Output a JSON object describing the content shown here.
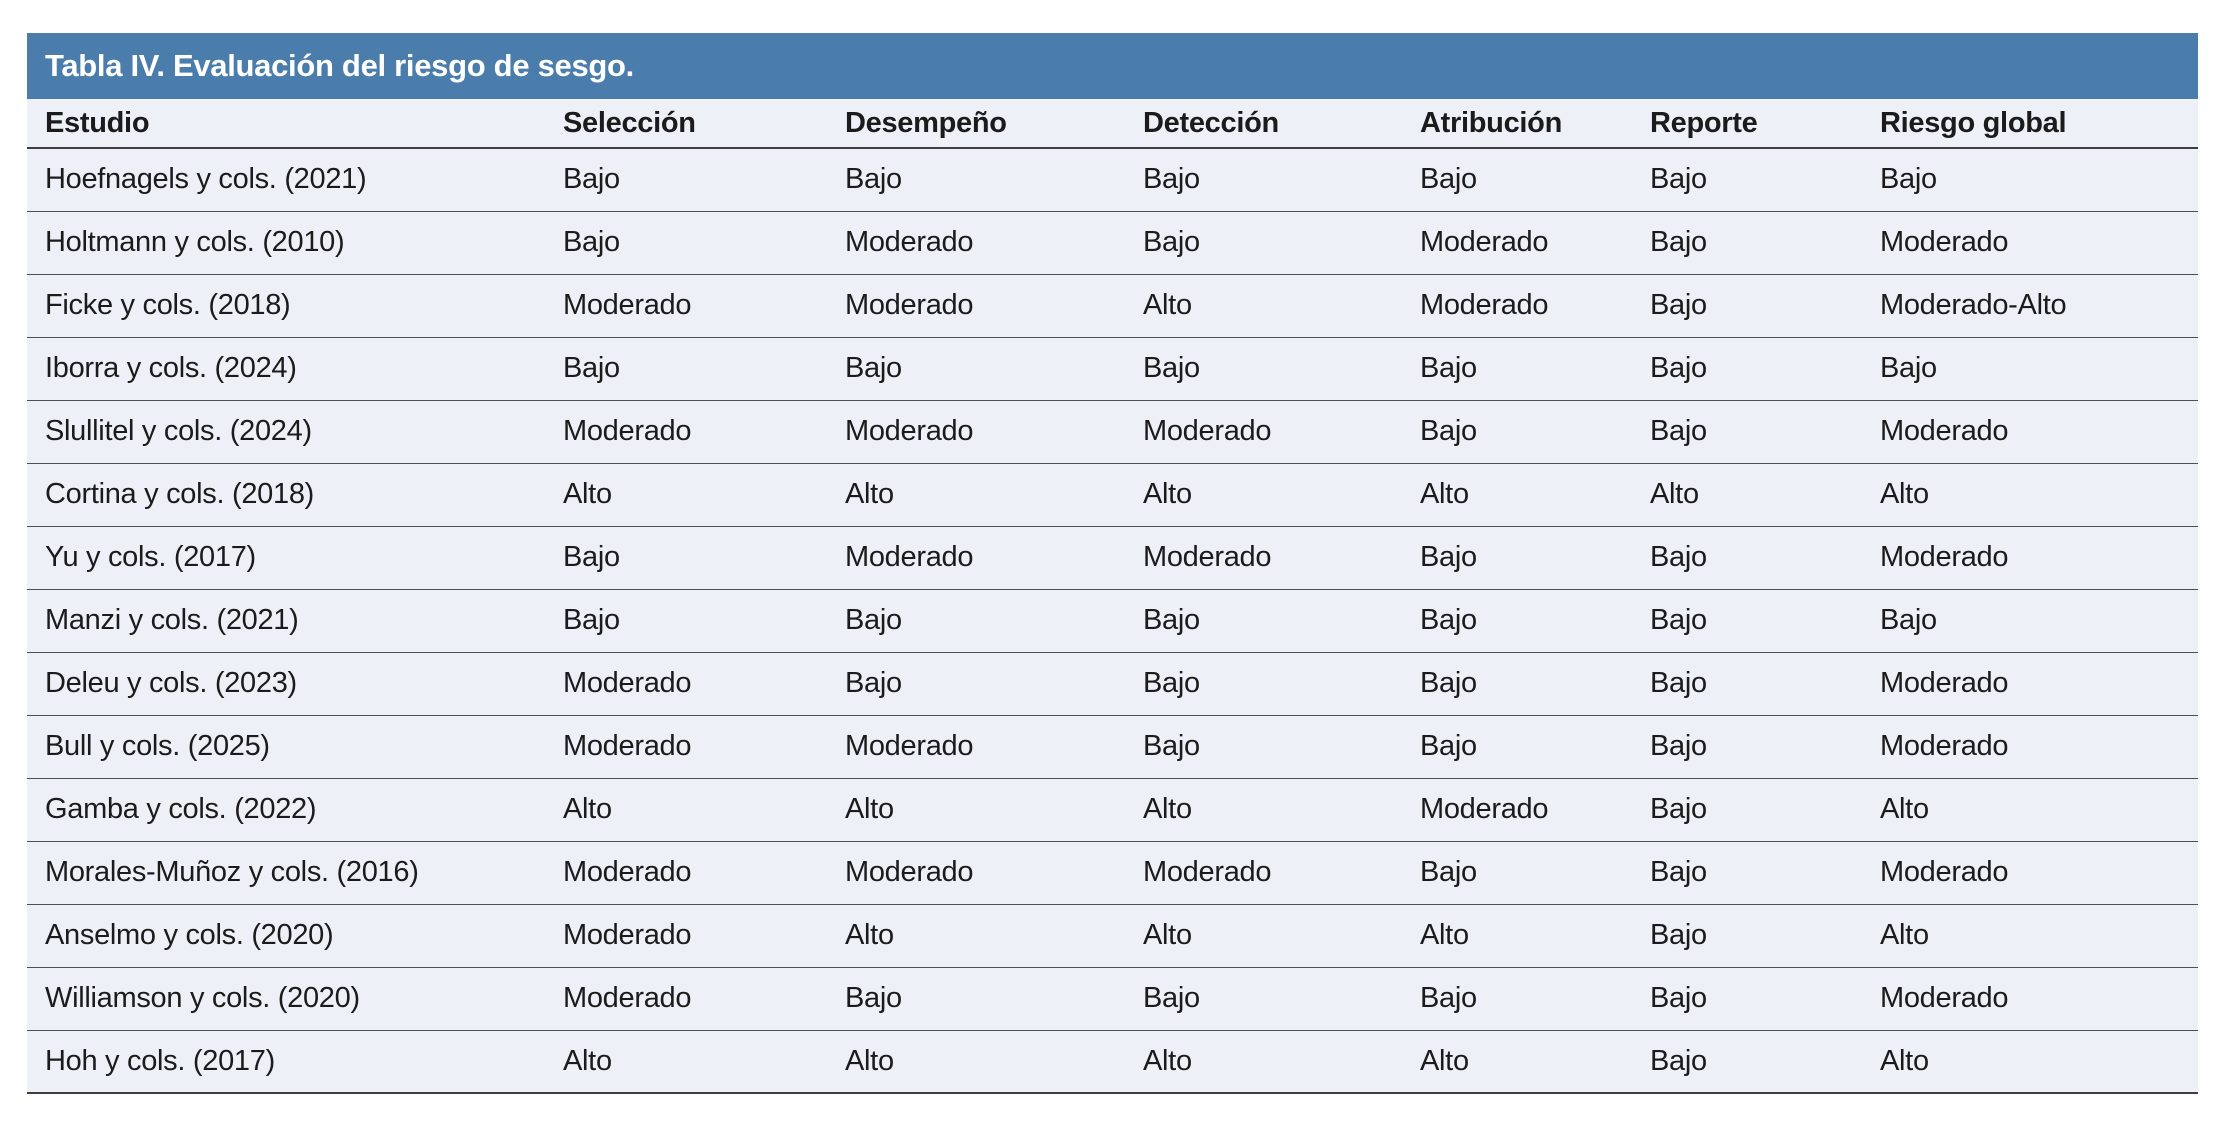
{
  "table": {
    "title": "Tabla IV. Evaluación del riesgo de sesgo.",
    "title_bg_color": "#4a7dab",
    "row_bg_color": "#edf0f7",
    "columns": [
      "Estudio",
      "Selección",
      "Desempeño",
      "Detección",
      "Atribución",
      "Reporte",
      "Riesgo global"
    ],
    "rows": [
      [
        "Hoefnagels y cols. (2021)",
        "Bajo",
        "Bajo",
        "Bajo",
        "Bajo",
        "Bajo",
        "Bajo"
      ],
      [
        "Holtmann y cols. (2010)",
        "Bajo",
        "Moderado",
        "Bajo",
        "Moderado",
        "Bajo",
        "Moderado"
      ],
      [
        "Ficke y cols. (2018)",
        "Moderado",
        "Moderado",
        "Alto",
        "Moderado",
        "Bajo",
        "Moderado-Alto"
      ],
      [
        "Iborra y cols. (2024)",
        "Bajo",
        "Bajo",
        "Bajo",
        "Bajo",
        "Bajo",
        "Bajo"
      ],
      [
        "Slullitel y cols. (2024)",
        "Moderado",
        "Moderado",
        "Moderado",
        "Bajo",
        "Bajo",
        "Moderado"
      ],
      [
        "Cortina y cols. (2018)",
        "Alto",
        "Alto",
        "Alto",
        "Alto",
        "Alto",
        "Alto"
      ],
      [
        "Yu y cols. (2017)",
        "Bajo",
        "Moderado",
        "Moderado",
        "Bajo",
        "Bajo",
        "Moderado"
      ],
      [
        "Manzi y cols. (2021)",
        "Bajo",
        "Bajo",
        "Bajo",
        "Bajo",
        "Bajo",
        "Bajo"
      ],
      [
        "Deleu y cols. (2023)",
        "Moderado",
        "Bajo",
        "Bajo",
        "Bajo",
        "Bajo",
        "Moderado"
      ],
      [
        "Bull y cols. (2025)",
        "Moderado",
        "Moderado",
        "Bajo",
        "Bajo",
        "Bajo",
        "Moderado"
      ],
      [
        "Gamba y cols. (2022)",
        "Alto",
        "Alto",
        "Alto",
        "Moderado",
        "Bajo",
        "Alto"
      ],
      [
        "Morales-Muñoz y cols. (2016)",
        "Moderado",
        "Moderado",
        "Moderado",
        "Bajo",
        "Bajo",
        "Moderado"
      ],
      [
        "Anselmo y cols. (2020)",
        "Moderado",
        "Alto",
        "Alto",
        "Alto",
        "Bajo",
        "Alto"
      ],
      [
        "Williamson y cols. (2020)",
        "Moderado",
        "Bajo",
        "Bajo",
        "Bajo",
        "Bajo",
        "Moderado"
      ],
      [
        "Hoh y cols. (2017)",
        "Alto",
        "Alto",
        "Alto",
        "Alto",
        "Bajo",
        "Alto"
      ]
    ]
  }
}
